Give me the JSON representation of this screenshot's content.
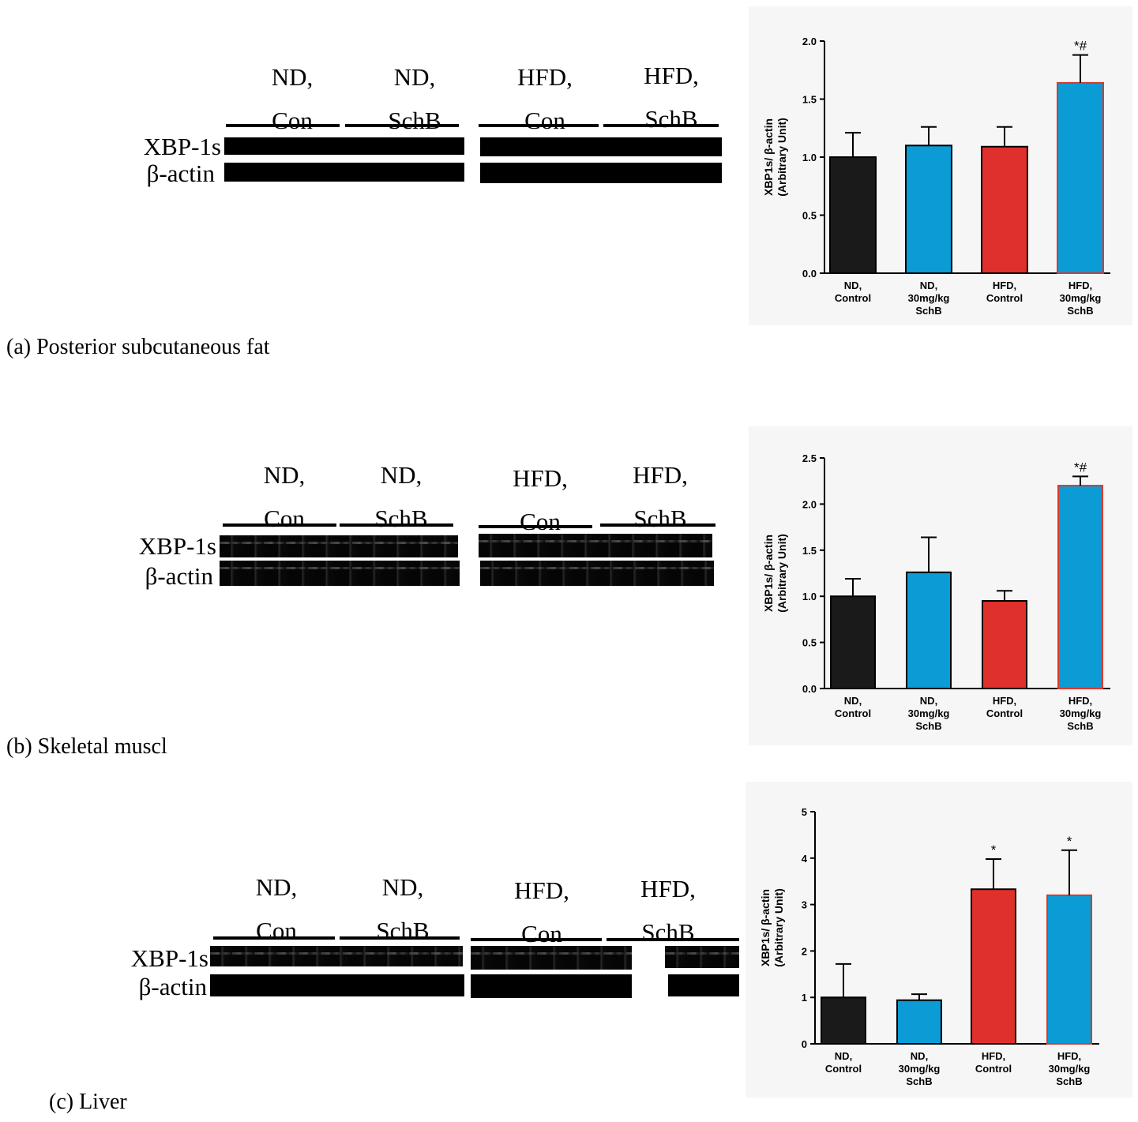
{
  "colors": {
    "black_bar": "#1a1a1a",
    "blue_bar": "#0b9bd5",
    "red_bar": "#e0302b",
    "red_outline": "#d93a2e"
  },
  "panels": [
    {
      "caption": "(a)  Posterior subcutaneous fat",
      "groups": [
        {
          "line1": "ND,",
          "line2": "Con"
        },
        {
          "line1": "ND,",
          "line2": "SchB"
        },
        {
          "line1": "HFD,",
          "line2": "Con"
        },
        {
          "line1": "HFD,",
          "line2": "SchB"
        }
      ],
      "rows": {
        "target": "XBP-1s",
        "control": "β-actin"
      }
    },
    {
      "caption": "(b)  Skeletal muscl",
      "groups": [
        {
          "line1": "ND,",
          "line2": "Con"
        },
        {
          "line1": "ND,",
          "line2": "SchB"
        },
        {
          "line1": "HFD,",
          "line2": "Con"
        },
        {
          "line1": "HFD,",
          "line2": "SchB"
        }
      ],
      "rows": {
        "target": "XBP-1s",
        "control": "β-actin"
      }
    },
    {
      "caption": "(c)  Liver",
      "groups": [
        {
          "line1": "ND,",
          "line2": "Con"
        },
        {
          "line1": "ND,",
          "line2": "SchB"
        },
        {
          "line1": "HFD,",
          "line2": "Con"
        },
        {
          "line1": "HFD,",
          "line2": "SchB"
        }
      ],
      "rows": {
        "target": "XBP-1s",
        "control": "β-actin"
      }
    }
  ],
  "chart_data": [
    {
      "type": "bar",
      "categories": [
        [
          "ND,",
          "Control"
        ],
        [
          "ND,",
          "30mg/kg",
          "SchB"
        ],
        [
          "HFD,",
          "Control"
        ],
        [
          "HFD,",
          "30mg/kg",
          "SchB"
        ]
      ],
      "values": [
        1.0,
        1.1,
        1.09,
        1.64
      ],
      "errors": [
        0.21,
        0.16,
        0.17,
        0.24
      ],
      "annotations": [
        "",
        "",
        "",
        "*#"
      ],
      "bar_colors": [
        "#1a1a1a",
        "#0b9bd5",
        "#e0302b",
        "#0b9bd5"
      ],
      "ylabel_lines": [
        "XBP1s/ β-actin",
        "(Arbitrary Unit)"
      ],
      "ylim": [
        0,
        2.0
      ],
      "yticks": [
        "0.0",
        "0.5",
        "1.0",
        "1.5",
        "2.0"
      ]
    },
    {
      "type": "bar",
      "categories": [
        [
          "ND,",
          "Control"
        ],
        [
          "ND,",
          "30mg/kg",
          "SchB"
        ],
        [
          "HFD,",
          "Control"
        ],
        [
          "HFD,",
          "30mg/kg",
          "SchB"
        ]
      ],
      "values": [
        1.0,
        1.26,
        0.95,
        2.2
      ],
      "errors": [
        0.19,
        0.38,
        0.11,
        0.1
      ],
      "annotations": [
        "",
        "",
        "",
        "*#"
      ],
      "bar_colors": [
        "#1a1a1a",
        "#0b9bd5",
        "#e0302b",
        "#0b9bd5"
      ],
      "ylabel_lines": [
        "XBP1s/ β-actin",
        "(Arbitrary Unit)"
      ],
      "ylim": [
        0,
        2.5
      ],
      "yticks": [
        "0.0",
        "0.5",
        "1.0",
        "1.5",
        "2.0",
        "2.5"
      ]
    },
    {
      "type": "bar",
      "categories": [
        [
          "ND,",
          "Control"
        ],
        [
          "ND,",
          "30mg/kg",
          "SchB"
        ],
        [
          "HFD,",
          "Control"
        ],
        [
          "HFD,",
          "30mg/kg",
          "SchB"
        ]
      ],
      "values": [
        1.0,
        0.94,
        3.33,
        3.2
      ],
      "errors": [
        0.72,
        0.13,
        0.65,
        0.97
      ],
      "annotations": [
        "",
        "",
        "*",
        "*"
      ],
      "bar_colors": [
        "#1a1a1a",
        "#0b9bd5",
        "#e0302b",
        "#0b9bd5"
      ],
      "ylabel_lines": [
        "XBP1s/ β-actin",
        "(Arbitrary Unit)"
      ],
      "ylim": [
        0,
        5
      ],
      "yticks": [
        "0",
        "1",
        "2",
        "3",
        "4",
        "5"
      ]
    }
  ]
}
